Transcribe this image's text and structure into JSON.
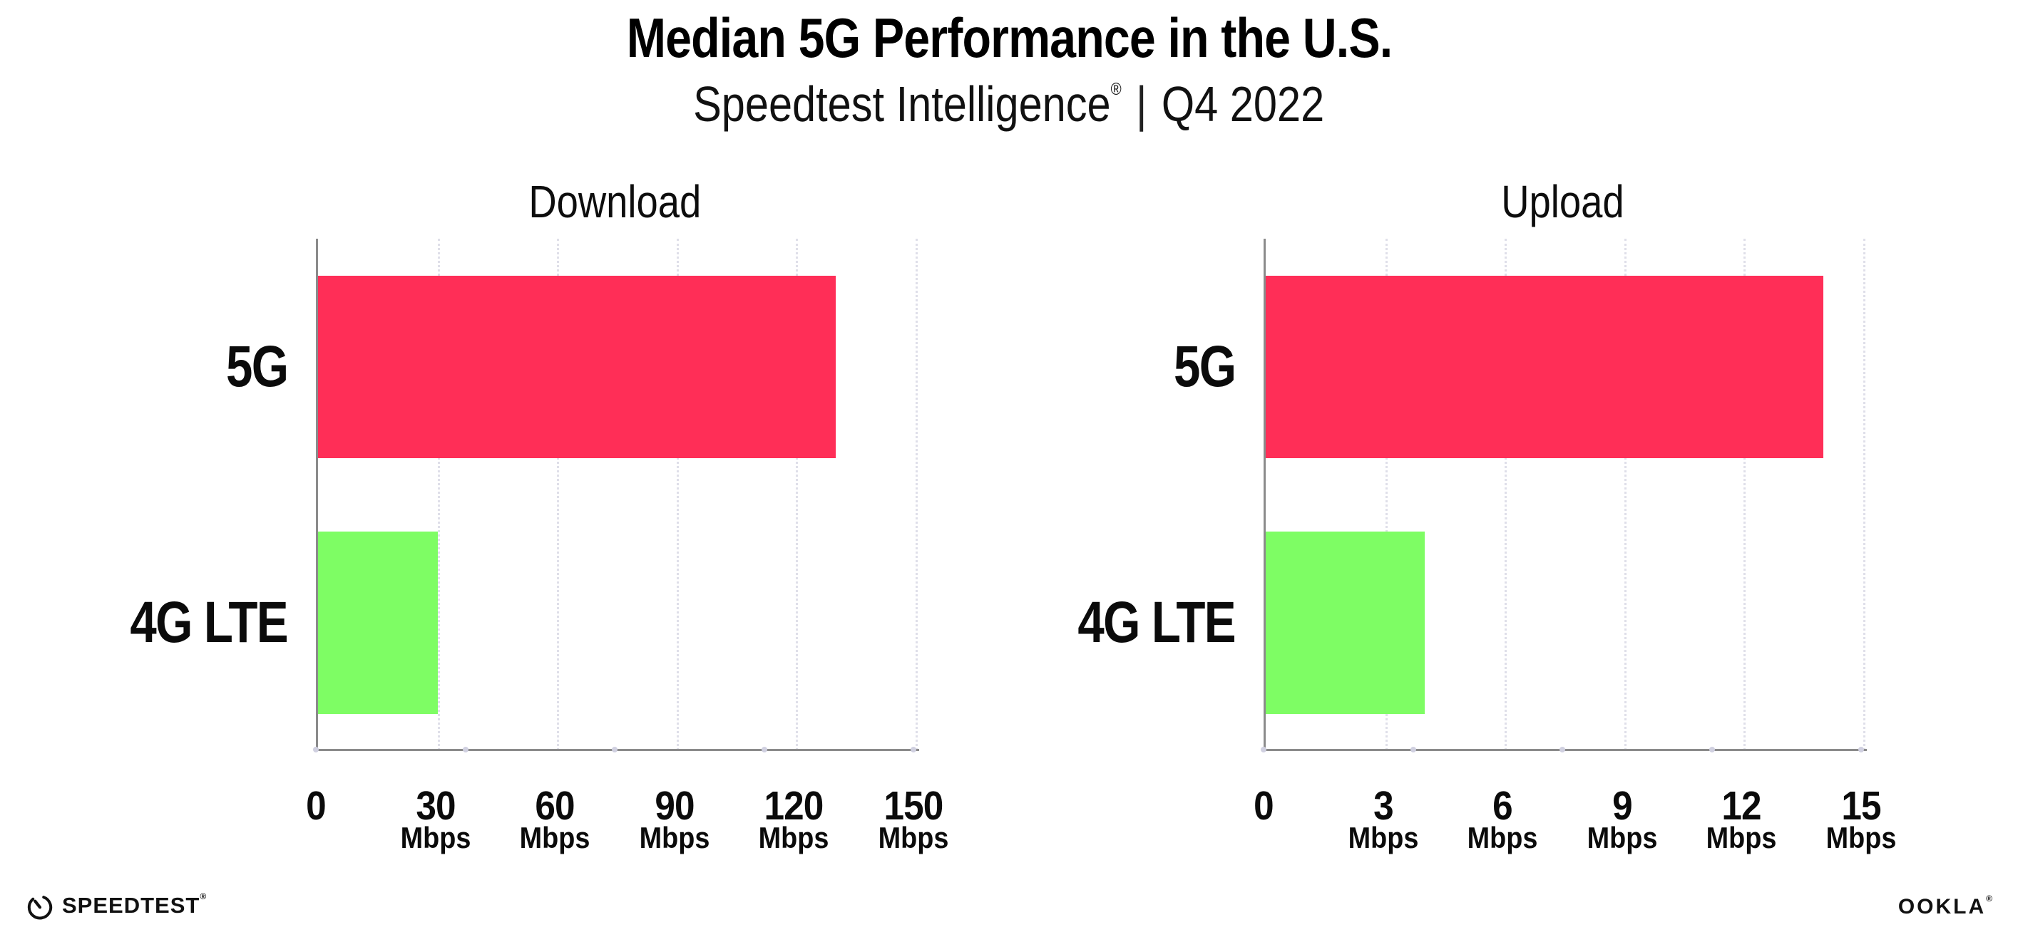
{
  "header": {
    "title": "Median 5G Performance in the U.S.",
    "subtitle_brand": "Speedtest Intelligence",
    "subtitle_reg": "®",
    "subtitle_sep": "|",
    "subtitle_period": "Q4 2022"
  },
  "colors": {
    "bar_5g": "#FF2E57",
    "bar_4g_lte": "#7EFD64",
    "axis": "#8b8b8b",
    "gridline": "#dfdfe9",
    "tick_dot": "#d0d0e0",
    "text": "#000000"
  },
  "chart_data": [
    {
      "type": "bar",
      "orientation": "horizontal",
      "title": "Download",
      "categories": [
        "5G",
        "4G LTE"
      ],
      "values": [
        130,
        30
      ],
      "unit": "Mbps",
      "xlim": [
        0,
        150
      ],
      "ticks": [
        0,
        30,
        60,
        90,
        120,
        150
      ],
      "bar_colors": [
        "#FF2E57",
        "#7EFD64"
      ],
      "grid": "dotted-vertical",
      "legend": "none"
    },
    {
      "type": "bar",
      "orientation": "horizontal",
      "title": "Upload",
      "categories": [
        "5G",
        "4G LTE"
      ],
      "values": [
        14,
        4
      ],
      "unit": "Mbps",
      "xlim": [
        0,
        15
      ],
      "ticks": [
        0,
        3,
        6,
        9,
        12,
        15
      ],
      "bar_colors": [
        "#FF2E57",
        "#7EFD64"
      ],
      "grid": "dotted-vertical",
      "legend": "none"
    }
  ],
  "footer": {
    "speedtest_label": "SPEEDTEST",
    "speedtest_reg": "®",
    "ookla_label": "OOKLA",
    "ookla_reg": "®"
  }
}
